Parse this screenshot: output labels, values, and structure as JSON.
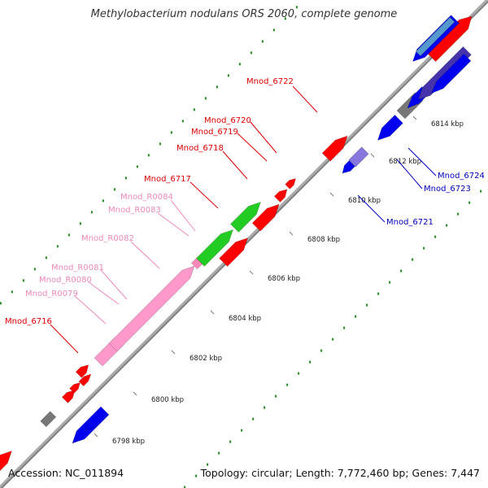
{
  "title": "Methylobacterium nodulans ORS 2060, complete genome",
  "footer": {
    "accession": "Accession: NC_011894",
    "summary": "Topology: circular; Length: 7,772,460 bp; Genes: 7,447"
  },
  "colors": {
    "forward_gene": "#ff0000",
    "reverse_gene": "#0000ee",
    "rna": "#ff99cc",
    "trna": "#ff88bb",
    "highlight": "#22cc22",
    "pseudo": "#777777",
    "light_blue": "#8877dd",
    "dots": "#228822",
    "backbone": "#999999"
  },
  "scale": {
    "unit": "kbp",
    "ticks": [
      {
        "label": "6798 kbp"
      },
      {
        "label": "6800 kbp"
      },
      {
        "label": "6802 kbp"
      },
      {
        "label": "6804 kbp"
      },
      {
        "label": "6806 kbp"
      },
      {
        "label": "6808 kbp"
      },
      {
        "label": "6810 kbp"
      },
      {
        "label": "6812 kbp"
      },
      {
        "label": "6814 kbp"
      }
    ]
  },
  "gene_labels": [
    {
      "name": "Mnod_6722",
      "color": "#dd0000"
    },
    {
      "name": "Mnod_6720",
      "color": "#dd0000"
    },
    {
      "name": "Mnod_6719",
      "color": "#dd0000"
    },
    {
      "name": "Mnod_6718",
      "color": "#dd0000"
    },
    {
      "name": "Mnod_6717",
      "color": "#dd0000"
    },
    {
      "name": "Mnod_R0084",
      "color": "#ee88bb"
    },
    {
      "name": "Mnod_R0083",
      "color": "#ee88bb"
    },
    {
      "name": "Mnod_R0082",
      "color": "#ee88bb"
    },
    {
      "name": "Mnod_R0081",
      "color": "#ee88bb"
    },
    {
      "name": "Mnod_R0080",
      "color": "#ee88bb"
    },
    {
      "name": "Mnod_R0079",
      "color": "#ee88bb"
    },
    {
      "name": "Mnod_6716",
      "color": "#dd0000"
    },
    {
      "name": "Mnod_6724",
      "color": "#0000bb"
    },
    {
      "name": "Mnod_6723",
      "color": "#0000bb"
    },
    {
      "name": "Mnod_6721",
      "color": "#0000bb"
    }
  ]
}
